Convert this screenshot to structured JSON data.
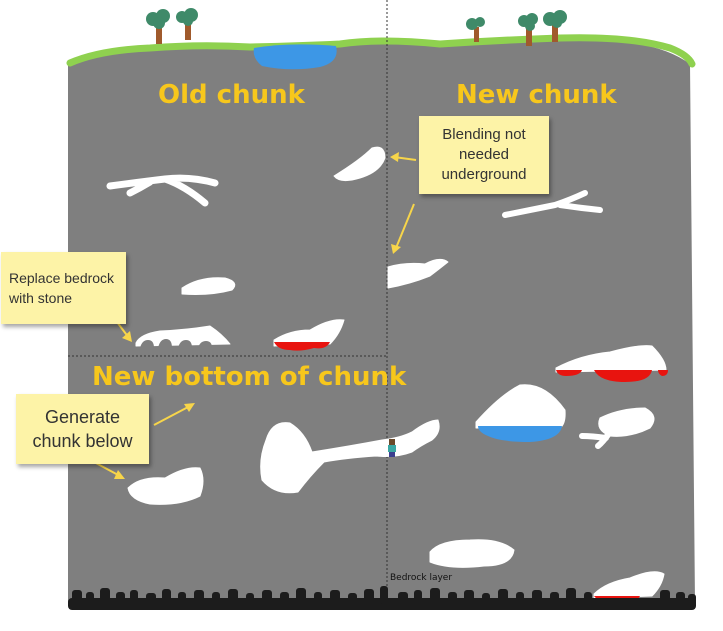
{
  "headings": {
    "old_chunk": "Old chunk",
    "new_chunk": "New chunk",
    "new_bottom": "New bottom of chunk"
  },
  "notes": {
    "blending": "Blending not needed underground",
    "replace_bedrock": "Replace bedrock with stone",
    "generate_below": "Generate chunk below"
  },
  "labels": {
    "bedrock_layer": "Bedrock layer"
  },
  "colors": {
    "stone": "#7f7f7f",
    "grass": "#8fd14f",
    "water": "#3d97e6",
    "cave": "#ffffff",
    "lava": "#e8140f",
    "bedrock": "#1c1c1c",
    "heading": "#f7c71c",
    "note": "#fdf3a7"
  }
}
